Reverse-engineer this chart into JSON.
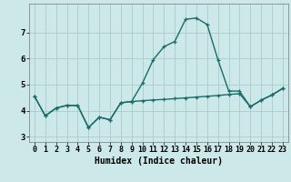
{
  "title": "",
  "xlabel": "Humidex (Indice chaleur)",
  "ylabel": "",
  "bg_color": "#cce8e8",
  "grid_color": "#aacccc",
  "line_color": "#1a6b6b",
  "x_line1": [
    0,
    1,
    2,
    3,
    4,
    5,
    6,
    7,
    8,
    9,
    10,
    11,
    12,
    13,
    14,
    15,
    16,
    17,
    18,
    19,
    20,
    21,
    22,
    23
  ],
  "y_line1": [
    4.55,
    3.8,
    4.1,
    4.2,
    4.2,
    3.35,
    3.75,
    3.65,
    4.3,
    4.35,
    5.05,
    5.95,
    6.45,
    6.65,
    7.5,
    7.55,
    7.3,
    5.95,
    4.75,
    4.75,
    4.15,
    4.4,
    4.6,
    4.85
  ],
  "x_line2": [
    0,
    1,
    2,
    3,
    4,
    5,
    6,
    7,
    8,
    9,
    10,
    11,
    12,
    13,
    14,
    15,
    16,
    17,
    18,
    19,
    20,
    21,
    22,
    23
  ],
  "y_line2": [
    4.55,
    3.8,
    4.1,
    4.2,
    4.2,
    3.35,
    3.75,
    3.65,
    4.3,
    4.35,
    4.38,
    4.41,
    4.43,
    4.46,
    4.49,
    4.52,
    4.55,
    4.58,
    4.62,
    4.65,
    4.15,
    4.4,
    4.6,
    4.85
  ],
  "ylim": [
    2.8,
    8.1
  ],
  "xlim": [
    -0.5,
    23.5
  ],
  "yticks": [
    3,
    4,
    5,
    6,
    7
  ],
  "xticks": [
    0,
    1,
    2,
    3,
    4,
    5,
    6,
    7,
    8,
    9,
    10,
    11,
    12,
    13,
    14,
    15,
    16,
    17,
    18,
    19,
    20,
    21,
    22,
    23
  ],
  "marker_size": 3.5,
  "line_width": 1.0,
  "tick_fontsize": 6.0,
  "xlabel_fontsize": 7.0
}
